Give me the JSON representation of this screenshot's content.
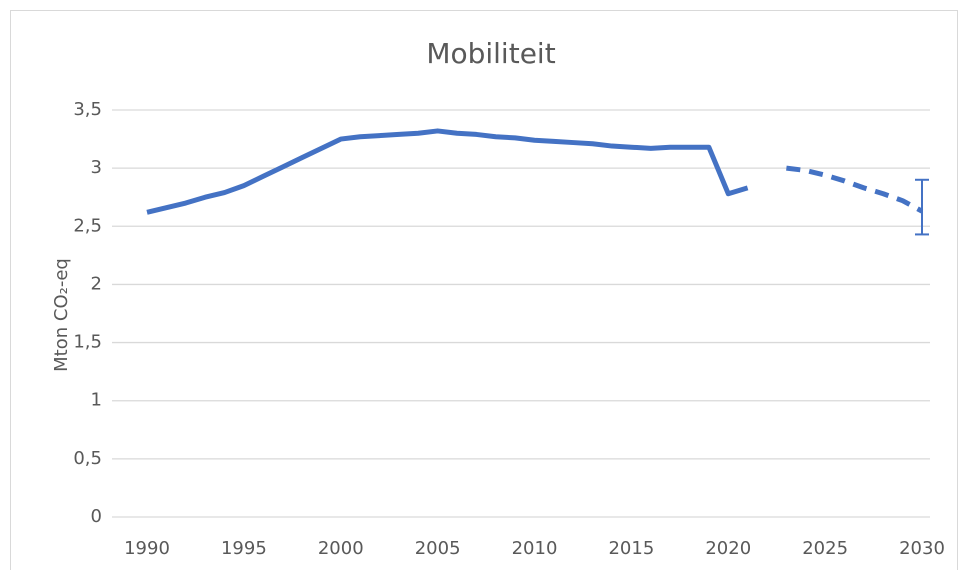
{
  "chart_data": {
    "type": "line",
    "title": "Mobiliteit",
    "y_label": "Mton CO₂-eq",
    "x": [
      1990,
      1991,
      1992,
      1993,
      1994,
      1995,
      1996,
      1997,
      1998,
      1999,
      2000,
      2001,
      2002,
      2003,
      2004,
      2005,
      2006,
      2007,
      2008,
      2009,
      2010,
      2011,
      2012,
      2013,
      2014,
      2015,
      2016,
      2017,
      2018,
      2019,
      2020,
      2021,
      2022,
      2023,
      2024,
      2025,
      2026,
      2027,
      2028,
      2029,
      2030
    ],
    "series": [
      {
        "color": "#4472c4",
        "style": "solid",
        "values": [
          2.62,
          2.66,
          2.7,
          2.75,
          2.79,
          2.85,
          2.93,
          3.01,
          3.09,
          3.17,
          3.25,
          3.27,
          3.28,
          3.29,
          3.3,
          3.32,
          3.3,
          3.29,
          3.27,
          3.26,
          3.24,
          3.23,
          3.22,
          3.21,
          3.19,
          3.18,
          3.17,
          3.18,
          3.18,
          3.18,
          2.78,
          2.83,
          null,
          null,
          null,
          null,
          null,
          null,
          null,
          null,
          null
        ]
      },
      {
        "color": "#4472c4",
        "style": "dashed",
        "values": [
          null,
          null,
          null,
          null,
          null,
          null,
          null,
          null,
          null,
          null,
          null,
          null,
          null,
          null,
          null,
          null,
          null,
          null,
          null,
          null,
          null,
          null,
          null,
          null,
          null,
          null,
          null,
          null,
          null,
          null,
          null,
          null,
          null,
          3.0,
          2.98,
          2.94,
          2.89,
          2.83,
          2.78,
          2.72,
          2.63
        ]
      }
    ],
    "error_bar": {
      "x": 2030,
      "low": 2.43,
      "high": 2.9,
      "color": "#4472c4"
    },
    "xlim": [
      1990,
      2030
    ],
    "xticks": [
      1990,
      1995,
      2000,
      2005,
      2010,
      2015,
      2020,
      2025,
      2030
    ],
    "ylim": [
      0,
      3.5
    ],
    "yticks": [
      0,
      {
        "value": 0.5,
        "label": "0,5"
      },
      1,
      {
        "value": 1.5,
        "label": "1,5"
      },
      2,
      {
        "value": 2.5,
        "label": "2,5"
      },
      3,
      {
        "value": 3.5,
        "label": "3,5"
      }
    ],
    "grid": true
  }
}
